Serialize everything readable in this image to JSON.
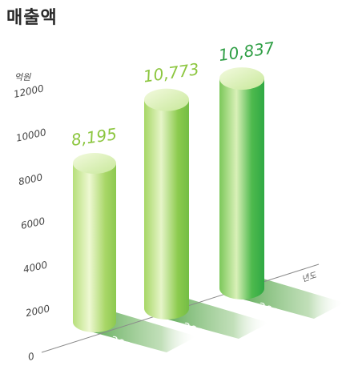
{
  "title": "매출액",
  "chart_data": {
    "type": "bar",
    "title": "매출액",
    "ylabel": "억원",
    "xlabel": "년도",
    "ylim": [
      0,
      12000
    ],
    "yticks": [
      0,
      2000,
      4000,
      6000,
      8000,
      10000,
      12000
    ],
    "categories": [
      "2011",
      "2012",
      "2013"
    ],
    "values": [
      8195,
      10773,
      10837
    ],
    "data_labels": [
      "8,195",
      "10,773",
      "10,837"
    ],
    "colors": {
      "bar_light": "#d7ee9c",
      "bar_mid": "#9fd25c",
      "bar_dark": "#3fb64a",
      "label_light": "#8cc63f",
      "label_dark": "#2e9e44"
    }
  }
}
